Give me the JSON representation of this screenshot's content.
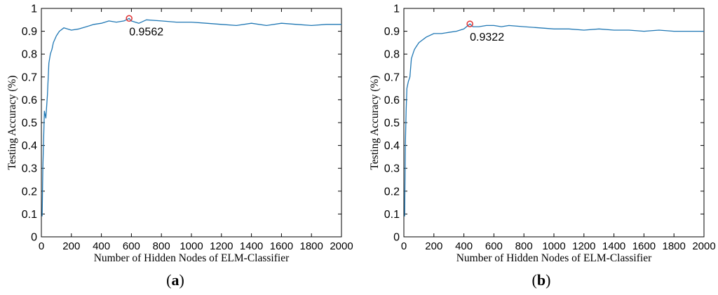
{
  "chart_data": [
    {
      "type": "line",
      "panel_label": "a",
      "xlabel": "Number of Hidden Nodes of ELM-Classifier",
      "ylabel": "Testing Accuracy (%)",
      "xlim": [
        0,
        2000
      ],
      "ylim": [
        0,
        1
      ],
      "xticks": [
        0,
        200,
        400,
        600,
        800,
        1000,
        1200,
        1400,
        1600,
        1800,
        2000
      ],
      "yticks": [
        0,
        0.1,
        0.2,
        0.3,
        0.4,
        0.5,
        0.6,
        0.7,
        0.8,
        0.9,
        1
      ],
      "grid": false,
      "line_color": "#1f77b4",
      "marker_color": "#e03030",
      "series": [
        {
          "x": [
            5,
            10,
            20,
            30,
            40,
            50,
            60,
            70,
            80,
            100,
            120,
            150,
            200,
            250,
            300,
            350,
            400,
            450,
            500,
            550,
            585,
            600,
            650,
            700,
            800,
            900,
            1000,
            1100,
            1200,
            1300,
            1400,
            1500,
            1600,
            1700,
            1800,
            1900,
            2000
          ],
          "y": [
            0.09,
            0.3,
            0.55,
            0.52,
            0.62,
            0.76,
            0.8,
            0.82,
            0.85,
            0.88,
            0.9,
            0.915,
            0.905,
            0.91,
            0.92,
            0.93,
            0.935,
            0.945,
            0.94,
            0.945,
            0.9562,
            0.945,
            0.935,
            0.95,
            0.945,
            0.94,
            0.94,
            0.935,
            0.93,
            0.925,
            0.935,
            0.925,
            0.935,
            0.93,
            0.925,
            0.93,
            0.93
          ]
        }
      ],
      "max_point": {
        "x": 585,
        "y": 0.9562,
        "label": "0.9562"
      }
    },
    {
      "type": "line",
      "panel_label": "b",
      "xlabel": "Number of Hidden Nodes of ELM-Classifier",
      "ylabel": "Testing Accuracy (%)",
      "xlim": [
        0,
        2000
      ],
      "ylim": [
        0,
        1
      ],
      "xticks": [
        0,
        200,
        400,
        600,
        800,
        1000,
        1200,
        1400,
        1600,
        1800,
        2000
      ],
      "yticks": [
        0,
        0.1,
        0.2,
        0.3,
        0.4,
        0.5,
        0.6,
        0.7,
        0.8,
        0.9,
        1
      ],
      "grid": false,
      "line_color": "#1f77b4",
      "marker_color": "#e03030",
      "series": [
        {
          "x": [
            5,
            10,
            15,
            20,
            30,
            40,
            50,
            60,
            70,
            80,
            100,
            120,
            150,
            200,
            250,
            300,
            350,
            400,
            440,
            460,
            500,
            550,
            600,
            650,
            700,
            800,
            900,
            1000,
            1100,
            1200,
            1300,
            1400,
            1500,
            1600,
            1700,
            1800,
            1900,
            2000
          ],
          "y": [
            0.09,
            0.4,
            0.55,
            0.65,
            0.68,
            0.7,
            0.78,
            0.8,
            0.82,
            0.83,
            0.85,
            0.86,
            0.875,
            0.89,
            0.89,
            0.895,
            0.9,
            0.91,
            0.9322,
            0.92,
            0.92,
            0.925,
            0.925,
            0.92,
            0.925,
            0.92,
            0.915,
            0.91,
            0.91,
            0.905,
            0.91,
            0.905,
            0.905,
            0.9,
            0.905,
            0.9,
            0.9,
            0.9
          ]
        }
      ],
      "max_point": {
        "x": 440,
        "y": 0.9322,
        "label": "0.9322"
      }
    }
  ]
}
